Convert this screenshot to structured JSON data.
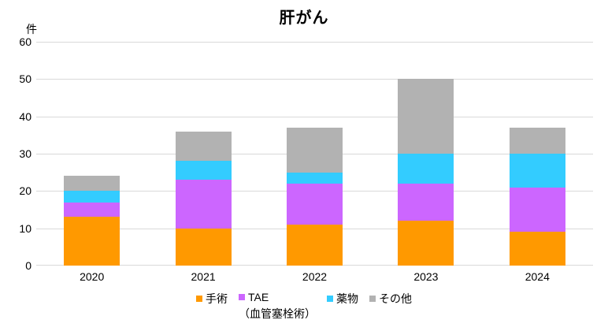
{
  "title": "肝がん",
  "unit_label": "件",
  "chart_data": {
    "type": "bar",
    "stacked": true,
    "title": "肝がん",
    "ylabel": "件",
    "xlabel": "",
    "ylim": [
      0,
      60
    ],
    "ytick_step": 10,
    "grid": true,
    "legend_position": "bottom",
    "categories": [
      "2020",
      "2021",
      "2022",
      "2023",
      "2024"
    ],
    "series": [
      {
        "name": "手術",
        "color": "#ff9900",
        "values": [
          13,
          10,
          11,
          12,
          9
        ]
      },
      {
        "name": "TAE",
        "color": "#cc66ff",
        "values": [
          4,
          13,
          11,
          10,
          12
        ]
      },
      {
        "name": "薬物",
        "color": "#33ccff",
        "values": [
          3,
          5,
          3,
          8,
          9
        ]
      },
      {
        "name": "その他",
        "color": "#b2b2b2",
        "values": [
          4,
          8,
          12,
          20,
          7
        ]
      }
    ],
    "totals": [
      24,
      36,
      37,
      50,
      37
    ]
  },
  "legend": {
    "items": [
      {
        "label": "手術",
        "color": "#ff9900",
        "note": ""
      },
      {
        "label": "TAE",
        "color": "#cc66ff",
        "note": "（血管塞栓術）"
      },
      {
        "label": "薬物",
        "color": "#33ccff",
        "note": ""
      },
      {
        "label": "その他",
        "color": "#b2b2b2",
        "note": ""
      }
    ]
  },
  "colors": {
    "gridline": "#d9d9d9",
    "text": "#000000",
    "background": "#ffffff"
  }
}
